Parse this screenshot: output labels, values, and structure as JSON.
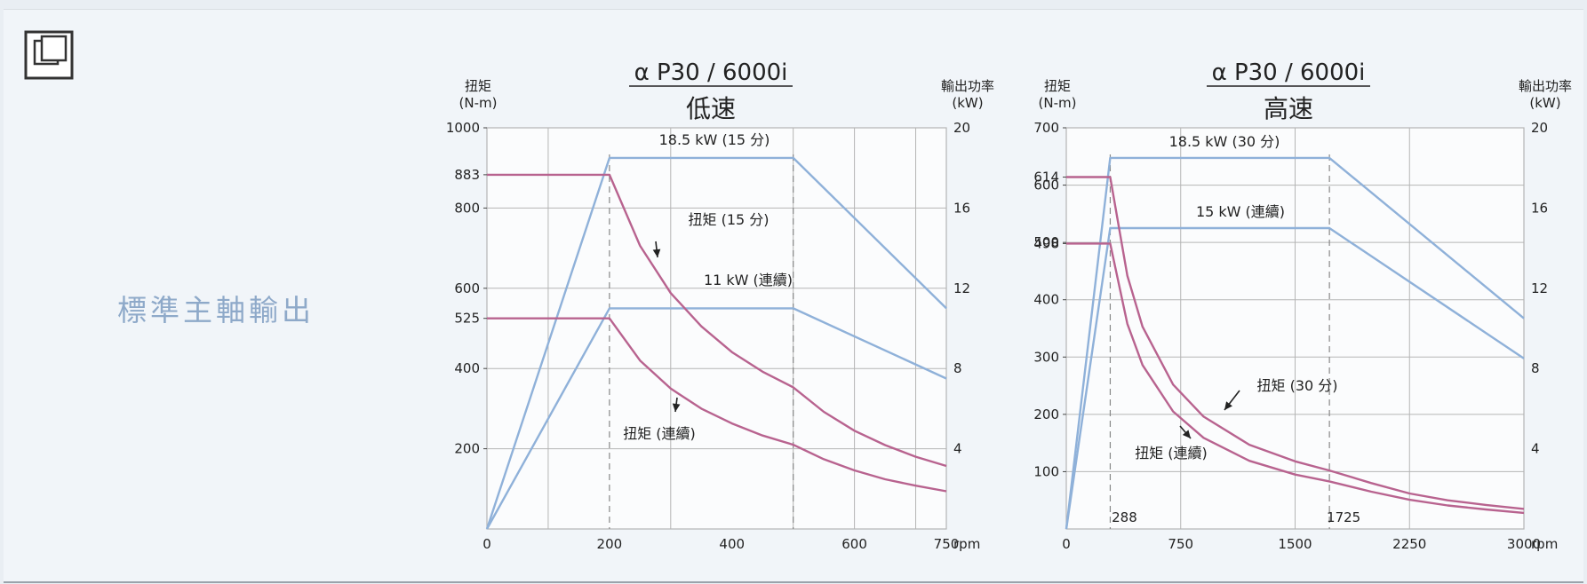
{
  "side_label": "標準主軸輸出",
  "expand_icon": "expand-window-icon",
  "colors": {
    "power": "#8fb1d9",
    "torque": "#b8638f",
    "grid": "#b5b5b5",
    "text": "#222222"
  },
  "chart_data": [
    {
      "type": "line",
      "title": "α P30 / 6000i",
      "subtitle": "低速",
      "ylabel_left": [
        "扭矩",
        "(N-m)"
      ],
      "ylabel_right": [
        "輸出功率",
        "(kW)"
      ],
      "xunit": "rpm",
      "xlim": [
        0,
        750
      ],
      "ylim_left": [
        0,
        1000
      ],
      "ylim_right": [
        0,
        20
      ],
      "x_ticks": [
        "0",
        "200",
        "400",
        "600",
        "750"
      ],
      "left_ticks": [
        "1000",
        "883",
        "800",
        "600",
        "525",
        "400",
        "200"
      ],
      "right_ticks": [
        "20",
        "16",
        "12",
        "8",
        "4"
      ],
      "grid_x": [
        100,
        300,
        500,
        600,
        700
      ],
      "grid_y_left": [
        200,
        400,
        600,
        800
      ],
      "series": [
        {
          "name": "18.5 kW (15 分)",
          "axis": "right",
          "kind": "power",
          "points": [
            [
              0,
              0
            ],
            [
              200,
              18.5
            ],
            [
              500,
              18.5
            ],
            [
              750,
              11
            ]
          ]
        },
        {
          "name": "11 kW (連續)",
          "axis": "right",
          "kind": "power",
          "points": [
            [
              0,
              0
            ],
            [
              200,
              11
            ],
            [
              500,
              11
            ],
            [
              750,
              7.5
            ]
          ]
        },
        {
          "name": "扭矩 (15 分)",
          "axis": "left",
          "kind": "torque",
          "points": [
            [
              0,
              883
            ],
            [
              200,
              883
            ],
            [
              250,
              706
            ],
            [
              300,
              588
            ],
            [
              350,
              505
            ],
            [
              400,
              441
            ],
            [
              450,
              392
            ],
            [
              500,
              353
            ],
            [
              550,
              292
            ],
            [
              600,
              245
            ],
            [
              650,
              209
            ],
            [
              700,
              180
            ],
            [
              750,
              157
            ]
          ]
        },
        {
          "name": "扭矩 (連續)",
          "axis": "left",
          "kind": "torque",
          "points": [
            [
              0,
              525
            ],
            [
              200,
              525
            ],
            [
              250,
              420
            ],
            [
              300,
              350
            ],
            [
              350,
              300
            ],
            [
              400,
              263
            ],
            [
              450,
              233
            ],
            [
              500,
              210
            ],
            [
              550,
              174
            ],
            [
              600,
              146
            ],
            [
              650,
              124
            ],
            [
              700,
              108
            ],
            [
              750,
              94
            ]
          ]
        }
      ],
      "annotations": [
        {
          "text": "18.5 kW (15 分)"
        },
        {
          "text": "扭矩 (15 分)"
        },
        {
          "text": "11 kW (連續)"
        },
        {
          "text": "扭矩 (連續)"
        }
      ],
      "markers": [
        200,
        500
      ]
    },
    {
      "type": "line",
      "title": "α P30 / 6000i",
      "subtitle": "高速",
      "ylabel_left": [
        "扭矩",
        "(N-m)"
      ],
      "ylabel_right": [
        "輸出功率",
        "(kW)"
      ],
      "xunit": "rpm",
      "xlim": [
        0,
        3000
      ],
      "ylim_left": [
        0,
        700
      ],
      "ylim_right": [
        0,
        20
      ],
      "x_ticks": [
        "0",
        "750",
        "1500",
        "2250",
        "3000"
      ],
      "left_ticks": [
        "700",
        "614",
        "600",
        "500",
        "498",
        "400",
        "300",
        "200",
        "100"
      ],
      "right_ticks": [
        "20",
        "16",
        "12",
        "8",
        "4"
      ],
      "marker_labels": [
        "288",
        "1725"
      ],
      "grid_x": [
        750,
        1500,
        2250
      ],
      "grid_y_left": [
        100,
        200,
        300,
        400,
        500,
        600
      ],
      "series": [
        {
          "name": "18.5 kW (30 分)",
          "axis": "right",
          "kind": "power",
          "points": [
            [
              0,
              0
            ],
            [
              288,
              18.5
            ],
            [
              1725,
              18.5
            ],
            [
              3000,
              10.5
            ]
          ]
        },
        {
          "name": "15 kW (連續)",
          "axis": "right",
          "kind": "power",
          "points": [
            [
              0,
              0
            ],
            [
              288,
              15
            ],
            [
              1725,
              15
            ],
            [
              3000,
              8.5
            ]
          ]
        },
        {
          "name": "扭矩 (30 分)",
          "axis": "left",
          "kind": "torque",
          "points": [
            [
              0,
              614
            ],
            [
              288,
              614
            ],
            [
              400,
              442
            ],
            [
              500,
              353
            ],
            [
              700,
              252
            ],
            [
              900,
              196
            ],
            [
              1200,
              147
            ],
            [
              1500,
              118
            ],
            [
              1725,
              102
            ],
            [
              2000,
              80
            ],
            [
              2250,
              62
            ],
            [
              2500,
              50
            ],
            [
              2750,
              42
            ],
            [
              3000,
              35
            ]
          ]
        },
        {
          "name": "扭矩 (連續)",
          "axis": "left",
          "kind": "torque",
          "points": [
            [
              0,
              498
            ],
            [
              288,
              498
            ],
            [
              400,
              358
            ],
            [
              500,
              286
            ],
            [
              700,
              205
            ],
            [
              900,
              159
            ],
            [
              1200,
              119
            ],
            [
              1500,
              95
            ],
            [
              1725,
              83
            ],
            [
              2000,
              65
            ],
            [
              2250,
              51
            ],
            [
              2500,
              41
            ],
            [
              2750,
              34
            ],
            [
              3000,
              28
            ]
          ]
        }
      ],
      "annotations": [
        {
          "text": "18.5 kW (30 分)"
        },
        {
          "text": "15 kW (連續)"
        },
        {
          "text": "扭矩 (30 分)"
        },
        {
          "text": "扭矩 (連續)"
        }
      ],
      "markers": [
        288,
        1725
      ]
    }
  ]
}
